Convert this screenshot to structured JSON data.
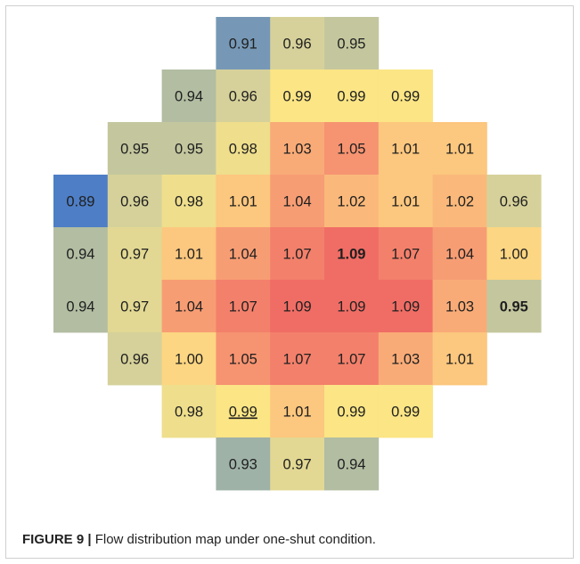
{
  "caption": {
    "label": "FIGURE 9 |",
    "text": "Flow distribution map under one-shut condition."
  },
  "chart_data": {
    "type": "heatmap",
    "title": "",
    "rows": [
      [
        null,
        null,
        null,
        "0.91",
        "0.96",
        "0.95",
        null,
        null,
        null
      ],
      [
        null,
        null,
        "0.94",
        "0.96",
        "0.99",
        "0.99",
        "0.99",
        null,
        null
      ],
      [
        null,
        "0.95",
        "0.95",
        "0.98",
        "1.03",
        "1.05",
        "1.01",
        "1.01",
        null
      ],
      [
        "0.89",
        "0.96",
        "0.98",
        "1.01",
        "1.04",
        "1.02",
        "1.01",
        "1.02",
        "0.96"
      ],
      [
        "0.94",
        "0.97",
        "1.01",
        "1.04",
        "1.07",
        "1.09",
        "1.07",
        "1.04",
        "1.00"
      ],
      [
        "0.94",
        "0.97",
        "1.04",
        "1.07",
        "1.09",
        "1.09",
        "1.09",
        "1.03",
        "0.95"
      ],
      [
        null,
        "0.96",
        "1.00",
        "1.05",
        "1.07",
        "1.07",
        "1.03",
        "1.01",
        null
      ],
      [
        null,
        null,
        "0.98",
        "0.99",
        "1.01",
        "0.99",
        "0.99",
        null,
        null
      ],
      [
        null,
        null,
        null,
        "0.93",
        "0.97",
        "0.94",
        null,
        null,
        null
      ]
    ],
    "emphasized_cells": [
      {
        "row": 4,
        "col": 5,
        "style": "bold"
      },
      {
        "row": 5,
        "col": 8,
        "style": "bold"
      },
      {
        "row": 7,
        "col": 3,
        "style": "underline"
      }
    ],
    "color_scale": {
      "stops": [
        {
          "value": 0.89,
          "color": "#4e7ec5"
        },
        {
          "value": 0.935,
          "color": "#a9b8a4"
        },
        {
          "value": 0.96,
          "color": "#d6d19a"
        },
        {
          "value": 0.99,
          "color": "#fbe585"
        },
        {
          "value": 1.01,
          "color": "#fcc77e"
        },
        {
          "value": 1.04,
          "color": "#f79d74"
        },
        {
          "value": 1.09,
          "color": "#f06d65"
        }
      ]
    }
  }
}
